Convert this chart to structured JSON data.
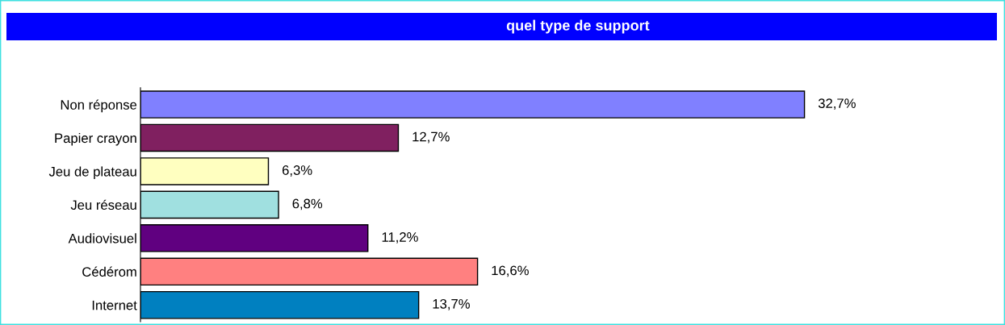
{
  "chart_data": {
    "type": "bar",
    "orientation": "horizontal",
    "title": "quel type de support",
    "categories": [
      "Non réponse",
      "Papier crayon",
      "Jeu de plateau",
      "Jeu réseau",
      "Audiovisuel",
      "Cédérom",
      "Internet"
    ],
    "values": [
      32.7,
      12.7,
      6.3,
      6.8,
      11.2,
      16.6,
      13.7
    ],
    "colors": [
      "#8080ff",
      "#802060",
      "#ffffc0",
      "#a0e0e0",
      "#600080",
      "#ff8080",
      "#0080c0"
    ],
    "value_labels": [
      "32,7%",
      "12,7%",
      "6,3%",
      "6,8%",
      "11,2%",
      "16,6%",
      "13,7%"
    ],
    "grid": false,
    "legend": false
  }
}
